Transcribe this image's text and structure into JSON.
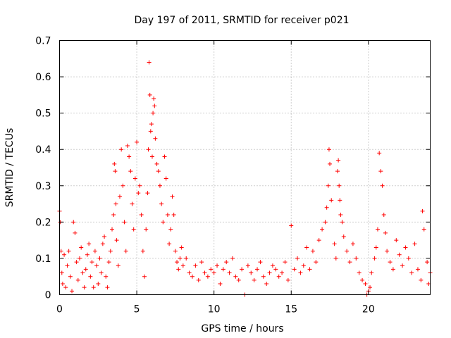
{
  "chart_data": {
    "type": "scatter",
    "title": "Day 197 of 2011, SRMTID for receiver p021",
    "xlabel": "GPS time / hours",
    "ylabel": "SRMTID / TECUs",
    "xlim": [
      0,
      24
    ],
    "ylim": [
      0,
      0.7
    ],
    "xticks": [
      0,
      5,
      10,
      15,
      20
    ],
    "xtick_labels": [
      "0",
      "5",
      "10",
      "15",
      "20"
    ],
    "yticks": [
      0,
      0.1,
      0.2,
      0.3,
      0.4,
      0.5,
      0.6,
      0.7
    ],
    "ytick_labels": [
      "0",
      "0.1",
      "0.2",
      "0.3",
      "0.4",
      "0.5",
      "0.6",
      "0.7"
    ],
    "grid": true,
    "marker": "+",
    "color": "#ff0000",
    "series": [
      {
        "name": "SRMTID",
        "x": [
          0.0,
          0.05,
          0.1,
          0.15,
          0.2,
          0.3,
          0.4,
          0.5,
          0.6,
          0.7,
          0.8,
          0.9,
          1.0,
          1.1,
          1.2,
          1.3,
          1.4,
          1.5,
          1.6,
          1.7,
          1.8,
          1.9,
          2.0,
          2.1,
          2.2,
          2.3,
          2.4,
          2.5,
          2.6,
          2.7,
          2.8,
          2.9,
          3.0,
          3.1,
          3.2,
          3.3,
          3.4,
          3.5,
          3.55,
          3.6,
          3.65,
          3.7,
          3.8,
          3.9,
          4.0,
          4.1,
          4.2,
          4.3,
          4.4,
          4.5,
          4.6,
          4.7,
          4.8,
          4.9,
          5.0,
          5.1,
          5.2,
          5.3,
          5.4,
          5.5,
          5.6,
          5.7,
          5.75,
          5.8,
          5.85,
          5.9,
          5.95,
          6.0,
          6.05,
          6.1,
          6.15,
          6.2,
          6.3,
          6.4,
          6.5,
          6.6,
          6.7,
          6.8,
          6.9,
          7.0,
          7.1,
          7.2,
          7.3,
          7.4,
          7.5,
          7.6,
          7.7,
          7.8,
          7.9,
          8.0,
          8.2,
          8.4,
          8.6,
          8.8,
          9.0,
          9.2,
          9.4,
          9.6,
          9.8,
          10.0,
          10.2,
          10.4,
          10.6,
          10.8,
          11.0,
          11.2,
          11.4,
          11.6,
          11.8,
          12.0,
          12.2,
          12.4,
          12.6,
          12.8,
          13.0,
          13.2,
          13.4,
          13.6,
          13.8,
          14.0,
          14.2,
          14.4,
          14.6,
          14.8,
          15.0,
          15.2,
          15.4,
          15.6,
          15.8,
          16.0,
          16.2,
          16.4,
          16.6,
          16.8,
          17.0,
          17.2,
          17.3,
          17.4,
          17.45,
          17.5,
          17.6,
          17.8,
          17.9,
          18.0,
          18.05,
          18.1,
          18.15,
          18.2,
          18.3,
          18.4,
          18.6,
          18.8,
          19.0,
          19.2,
          19.4,
          19.6,
          19.8,
          19.9,
          20.0,
          20.1,
          20.2,
          20.4,
          20.5,
          20.6,
          20.7,
          20.8,
          20.9,
          21.0,
          21.1,
          21.2,
          21.4,
          21.6,
          21.8,
          22.0,
          22.2,
          22.4,
          22.6,
          22.8,
          23.0,
          23.2,
          23.4,
          23.5,
          23.6,
          23.8,
          23.9,
          24.0
        ],
        "y": [
          0.23,
          0.2,
          0.12,
          0.06,
          0.03,
          0.11,
          0.02,
          0.08,
          0.12,
          0.05,
          0.01,
          0.2,
          0.17,
          0.09,
          0.04,
          0.1,
          0.13,
          0.06,
          0.02,
          0.07,
          0.11,
          0.14,
          0.05,
          0.09,
          0.02,
          0.12,
          0.08,
          0.03,
          0.1,
          0.06,
          0.14,
          0.16,
          0.05,
          0.02,
          0.09,
          0.12,
          0.18,
          0.22,
          0.36,
          0.34,
          0.25,
          0.15,
          0.08,
          0.27,
          0.4,
          0.3,
          0.2,
          0.12,
          0.41,
          0.38,
          0.34,
          0.25,
          0.18,
          0.32,
          0.42,
          0.28,
          0.3,
          0.22,
          0.12,
          0.05,
          0.18,
          0.28,
          0.4,
          0.64,
          0.55,
          0.45,
          0.47,
          0.38,
          0.5,
          0.54,
          0.52,
          0.43,
          0.36,
          0.34,
          0.3,
          0.25,
          0.2,
          0.38,
          0.32,
          0.22,
          0.14,
          0.18,
          0.27,
          0.22,
          0.12,
          0.09,
          0.07,
          0.1,
          0.13,
          0.08,
          0.1,
          0.06,
          0.05,
          0.08,
          0.04,
          0.09,
          0.06,
          0.05,
          0.07,
          0.06,
          0.08,
          0.03,
          0.07,
          0.09,
          0.06,
          0.1,
          0.05,
          0.04,
          0.07,
          0.0,
          0.08,
          0.06,
          0.04,
          0.07,
          0.09,
          0.05,
          0.03,
          0.06,
          0.08,
          0.07,
          0.05,
          0.06,
          0.09,
          0.04,
          0.19,
          0.07,
          0.1,
          0.06,
          0.08,
          0.13,
          0.07,
          0.12,
          0.09,
          0.15,
          0.18,
          0.2,
          0.24,
          0.3,
          0.4,
          0.36,
          0.26,
          0.14,
          0.1,
          0.34,
          0.37,
          0.3,
          0.26,
          0.22,
          0.2,
          0.16,
          0.12,
          0.09,
          0.14,
          0.1,
          0.06,
          0.04,
          0.03,
          0.0,
          0.01,
          0.02,
          0.06,
          0.1,
          0.13,
          0.18,
          0.39,
          0.34,
          0.3,
          0.22,
          0.17,
          0.12,
          0.09,
          0.07,
          0.15,
          0.11,
          0.08,
          0.13,
          0.1,
          0.06,
          0.14,
          0.07,
          0.04,
          0.23,
          0.18,
          0.09,
          0.03,
          0.06
        ]
      }
    ]
  }
}
